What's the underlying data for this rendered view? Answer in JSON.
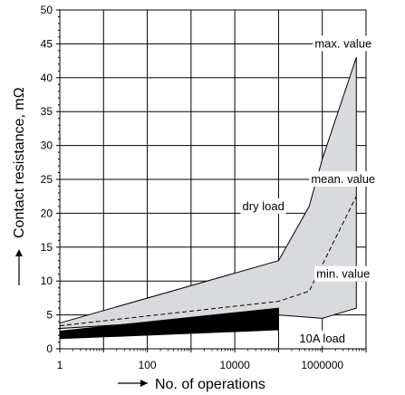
{
  "chart_data": {
    "type": "area",
    "title": "",
    "xlabel": "No. of operations",
    "ylabel": "Contact resistance, mΩ",
    "x_scale": "log",
    "xlim": [
      1,
      10000000
    ],
    "ylim": [
      0,
      50
    ],
    "x_ticks": [
      1,
      10,
      100,
      1000,
      10000,
      100000,
      1000000,
      10000000
    ],
    "x_tick_labels": [
      "1",
      "",
      "100",
      "",
      "10000",
      "",
      "1000000",
      ""
    ],
    "y_ticks": [
      0,
      5,
      10,
      15,
      20,
      25,
      30,
      35,
      40,
      45,
      50
    ],
    "y_tick_labels": [
      "0",
      "5",
      "10",
      "15",
      "20",
      "25",
      "30",
      "35",
      "40",
      "45",
      "50"
    ],
    "grid": true,
    "series": [
      {
        "name": "dry load",
        "kind": "band",
        "upper": {
          "name": "max. value",
          "x": [
            1,
            100000,
            500000,
            1000000,
            6000000
          ],
          "y": [
            3.8,
            13,
            21,
            28,
            43
          ]
        },
        "lower": {
          "name": "min. value",
          "x": [
            1,
            100000,
            1000000,
            6000000
          ],
          "y": [
            3,
            5,
            4.5,
            6
          ]
        },
        "color": "#d9dadd"
      },
      {
        "name": "mean. value",
        "kind": "dashed_line",
        "x": [
          1,
          100000,
          500000,
          6000000
        ],
        "y": [
          3.4,
          7,
          8.5,
          22.5
        ],
        "color": "#000000"
      },
      {
        "name": "10A load",
        "kind": "band",
        "upper": {
          "x": [
            1,
            100000
          ],
          "y": [
            2.6,
            6
          ]
        },
        "lower": {
          "x": [
            1,
            100000
          ],
          "y": [
            1.5,
            2.8
          ]
        },
        "color": "#000000"
      }
    ],
    "annotations": [
      {
        "text": "max. value",
        "x": 3000000,
        "y": 45,
        "anchor": "middle"
      },
      {
        "text": "mean. value",
        "x": 3000000,
        "y": 25,
        "anchor": "middle"
      },
      {
        "text": "dry load",
        "x": 45000,
        "y": 21,
        "anchor": "middle"
      },
      {
        "text": "min. value",
        "x": 3000000,
        "y": 11,
        "anchor": "middle"
      },
      {
        "text": "10A load",
        "x": 1000000,
        "y": 1.5,
        "anchor": "middle"
      }
    ]
  }
}
